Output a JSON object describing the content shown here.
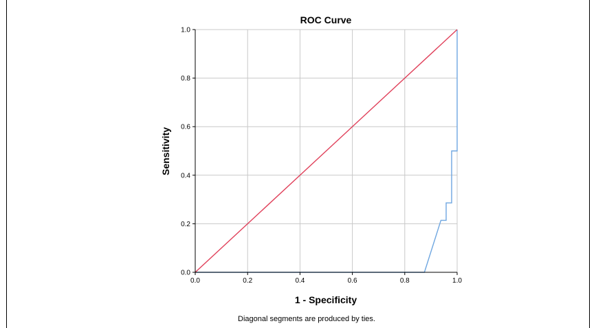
{
  "chart_data": {
    "type": "line",
    "title": "ROC Curve",
    "xlabel": "1 - Specificity",
    "ylabel": "Sensitivity",
    "xlim": [
      0.0,
      1.0
    ],
    "ylim": [
      0.0,
      1.0
    ],
    "x_ticks": [
      "0.0",
      "0.2",
      "0.4",
      "0.6",
      "0.8",
      "1.0"
    ],
    "y_ticks": [
      "0.0",
      "0.2",
      "0.4",
      "0.6",
      "0.8",
      "1.0"
    ],
    "grid": true,
    "series": [
      {
        "color": "#6ea6e0",
        "x": [
          0.0,
          0.875,
          0.938,
          0.938,
          0.958,
          0.958,
          0.979,
          0.979,
          1.0,
          1.0
        ],
        "y": [
          0.0,
          0.0,
          0.214,
          0.214,
          0.214,
          0.286,
          0.286,
          0.5,
          0.5,
          1.0
        ]
      },
      {
        "color": "#e0405a",
        "x": [
          0.0,
          1.0
        ],
        "y": [
          0.0,
          1.0
        ]
      }
    ],
    "footnote": "Diagonal segments are produced by ties."
  }
}
